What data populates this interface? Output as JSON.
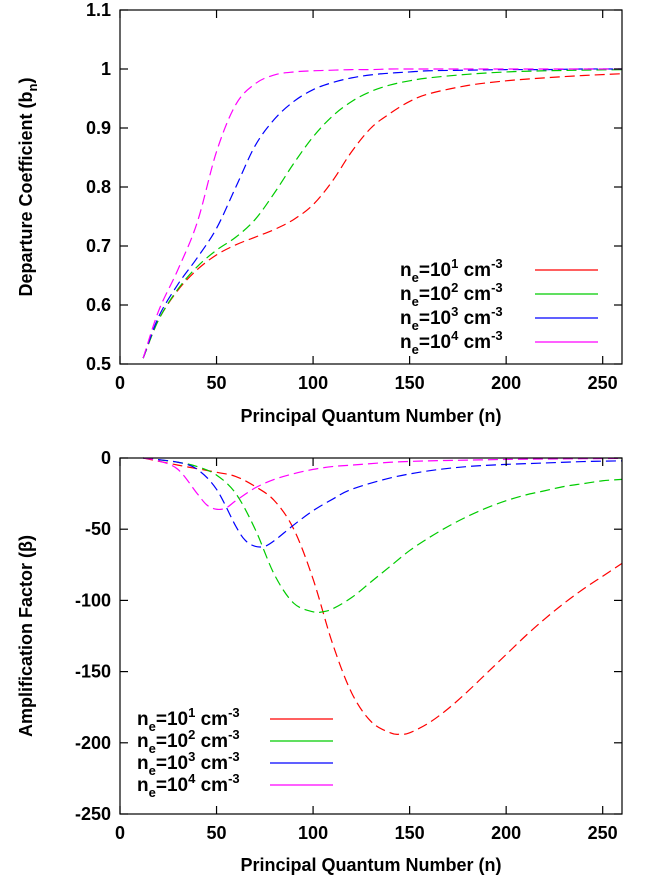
{
  "chart_data": [
    {
      "type": "line",
      "xlabel": "Principal Quantum Number (n)",
      "ylabel_text": "Departure Coefficient (b",
      "ylabel_sub": "n",
      "ylabel_close": ")",
      "xlim": [
        0,
        260
      ],
      "ylim": [
        0.5,
        1.1
      ],
      "xticks": [
        0,
        50,
        100,
        150,
        200,
        250
      ],
      "xtick_labels": [
        "0",
        "50",
        "100",
        "150",
        "200",
        "250"
      ],
      "yticks": [
        0.5,
        0.6,
        0.7,
        0.8,
        0.9,
        1.0,
        1.1
      ],
      "ytick_labels": [
        "0.5",
        "0.6",
        "0.7",
        "0.8",
        "0.9",
        "1",
        "1.1"
      ],
      "legend_position": "bottom-right",
      "series": [
        {
          "name": "n_e=10^1 cm^-3",
          "color": "#ff0000",
          "x": [
            12,
            20,
            30,
            40,
            50,
            60,
            70,
            80,
            90,
            100,
            110,
            120,
            130,
            140,
            150,
            160,
            180,
            200,
            220,
            240,
            260
          ],
          "y": [
            0.51,
            0.575,
            0.625,
            0.66,
            0.685,
            0.702,
            0.715,
            0.728,
            0.745,
            0.77,
            0.81,
            0.86,
            0.9,
            0.925,
            0.945,
            0.958,
            0.972,
            0.98,
            0.985,
            0.989,
            0.992
          ]
        },
        {
          "name": "n_e=10^2 cm^-3",
          "color": "#00cc00",
          "x": [
            12,
            20,
            30,
            40,
            50,
            60,
            70,
            80,
            90,
            100,
            110,
            120,
            130,
            140,
            150,
            160,
            180,
            200,
            220,
            240,
            260
          ],
          "y": [
            0.51,
            0.575,
            0.627,
            0.665,
            0.693,
            0.715,
            0.745,
            0.79,
            0.84,
            0.885,
            0.92,
            0.945,
            0.962,
            0.973,
            0.98,
            0.985,
            0.991,
            0.995,
            0.997,
            0.998,
            0.999
          ]
        },
        {
          "name": "n_e=10^3 cm^-3",
          "color": "#0000ff",
          "x": [
            12,
            20,
            30,
            40,
            50,
            60,
            70,
            80,
            90,
            100,
            110,
            120,
            130,
            140,
            150,
            160,
            180,
            200,
            220,
            240,
            260
          ],
          "y": [
            0.51,
            0.58,
            0.635,
            0.68,
            0.73,
            0.8,
            0.87,
            0.915,
            0.945,
            0.965,
            0.977,
            0.985,
            0.99,
            0.993,
            0.995,
            0.997,
            0.998,
            0.999,
            0.999,
            1.0,
            1.0
          ]
        },
        {
          "name": "n_e=10^4 cm^-3",
          "color": "#ff00ff",
          "x": [
            12,
            20,
            30,
            40,
            50,
            60,
            70,
            80,
            90,
            100,
            110,
            120,
            130,
            140,
            150,
            160,
            180,
            200,
            220,
            240,
            260
          ],
          "y": [
            0.51,
            0.59,
            0.66,
            0.74,
            0.86,
            0.94,
            0.975,
            0.99,
            0.995,
            0.997,
            0.998,
            0.999,
            0.999,
            1.0,
            1.0,
            1.0,
            1.0,
            1.0,
            1.0,
            1.0,
            1.0
          ]
        }
      ]
    },
    {
      "type": "line",
      "xlabel": "Principal Quantum Number (n)",
      "ylabel_text": "Amplification Factor (β)",
      "ylabel_sub": "",
      "ylabel_close": "",
      "xlim": [
        0,
        260
      ],
      "ylim": [
        -250,
        0
      ],
      "xticks": [
        0,
        50,
        100,
        150,
        200,
        250
      ],
      "xtick_labels": [
        "0",
        "50",
        "100",
        "150",
        "200",
        "250"
      ],
      "yticks": [
        0,
        -50,
        -100,
        -150,
        -200,
        -250
      ],
      "ytick_labels": [
        "0",
        "-50",
        "-100",
        "-150",
        "-200",
        "-250"
      ],
      "legend_position": "bottom-left",
      "series": [
        {
          "name": "n_e=10^1 cm^-3",
          "color": "#ff0000",
          "x": [
            12,
            30,
            50,
            60,
            70,
            80,
            90,
            100,
            110,
            120,
            130,
            140,
            145,
            150,
            160,
            170,
            180,
            190,
            200,
            210,
            220,
            230,
            240,
            250,
            260
          ],
          "y": [
            0,
            -5,
            -10,
            -13,
            -20,
            -30,
            -50,
            -85,
            -130,
            -165,
            -185,
            -193,
            -194,
            -193,
            -186,
            -176,
            -164,
            -151,
            -138,
            -125,
            -113,
            -102,
            -92,
            -83,
            -74
          ]
        },
        {
          "name": "n_e=10^2 cm^-3",
          "color": "#00cc00",
          "x": [
            12,
            30,
            40,
            50,
            60,
            70,
            80,
            90,
            100,
            105,
            110,
            120,
            130,
            140,
            150,
            160,
            170,
            180,
            190,
            200,
            210,
            220,
            230,
            240,
            250,
            260
          ],
          "y": [
            0,
            -3,
            -6,
            -12,
            -25,
            -50,
            -82,
            -102,
            -108,
            -108,
            -106,
            -98,
            -87,
            -76,
            -65,
            -56,
            -48,
            -41,
            -35,
            -30,
            -26,
            -23,
            -20,
            -18,
            -16,
            -15
          ]
        },
        {
          "name": "n_e=10^3 cm^-3",
          "color": "#0000ff",
          "x": [
            12,
            30,
            40,
            50,
            60,
            65,
            70,
            75,
            80,
            90,
            100,
            110,
            120,
            140,
            160,
            180,
            200,
            220,
            240,
            260
          ],
          "y": [
            0,
            -3,
            -8,
            -22,
            -48,
            -58,
            -62,
            -62,
            -58,
            -47,
            -37,
            -29,
            -22,
            -14,
            -9,
            -6,
            -4.5,
            -3.5,
            -2.5,
            -2
          ]
        },
        {
          "name": "n_e=10^4 cm^-3",
          "color": "#ff00ff",
          "x": [
            12,
            20,
            30,
            40,
            45,
            50,
            55,
            60,
            70,
            80,
            90,
            100,
            110,
            120,
            140,
            160,
            180,
            200,
            220,
            240,
            260
          ],
          "y": [
            0,
            -2,
            -8,
            -25,
            -33,
            -36,
            -35,
            -30,
            -21,
            -15,
            -11,
            -8,
            -6,
            -5,
            -3,
            -2,
            -1.5,
            -1,
            -0.7,
            -0.5,
            -0.3
          ]
        }
      ]
    }
  ]
}
